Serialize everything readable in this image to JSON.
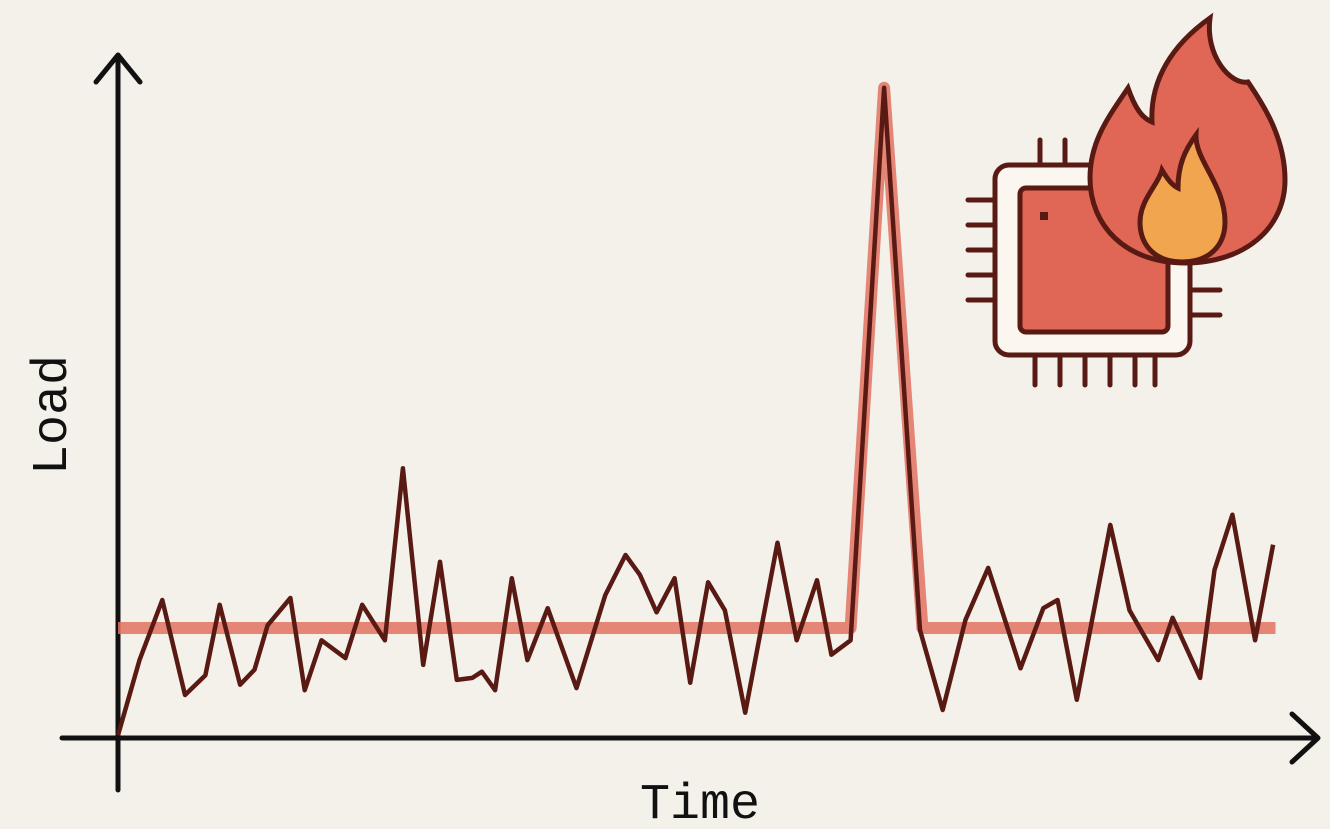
{
  "chart_data": {
    "type": "line",
    "x_label": "Time",
    "y_label": "Load",
    "xlim": [
      0,
      100
    ],
    "ylim": [
      0,
      100
    ],
    "series": [
      {
        "color": "#e07262",
        "x": [
          0,
          61.2,
          64.0,
          67.2,
          96.7
        ],
        "values": [
          16.1,
          16.1,
          95.2,
          16.1,
          16.1
        ]
      },
      {
        "color": "#5a1a14",
        "x": [
          0,
          1.8,
          3.7,
          5.6,
          7.3,
          8.5,
          10.2,
          11.4,
          12.5,
          14.4,
          15.6,
          17.0,
          19.0,
          20.4,
          22.3,
          23.8,
          25.5,
          26.9,
          28.3,
          29.6,
          30.4,
          31.5,
          32.9,
          34.2,
          35.9,
          38.3,
          40.7,
          42.4,
          43.6,
          45.0,
          46.5,
          47.8,
          49.3,
          50.7,
          52.4,
          55.1,
          56.7,
          58.4,
          59.6,
          61.2,
          64.0,
          67.0,
          68.9,
          70.8,
          72.7,
          75.4,
          77.3,
          78.5,
          80.1,
          82.9,
          84.5,
          86.9,
          88.1,
          90.4,
          91.6,
          93.1,
          95.0,
          96.5
        ],
        "values": [
          0.4,
          11.4,
          20.2,
          6.3,
          9.2,
          19.5,
          7.8,
          10.0,
          16.5,
          20.5,
          7.0,
          14.3,
          11.7,
          19.5,
          14.3,
          39.5,
          10.7,
          25.8,
          8.5,
          8.8,
          9.7,
          7.0,
          23.4,
          11.4,
          19.0,
          7.3,
          20.9,
          26.8,
          23.9,
          18.4,
          23.4,
          8.1,
          22.8,
          18.7,
          3.7,
          28.6,
          14.3,
          23.1,
          12.2,
          14.3,
          95.2,
          15.8,
          4.1,
          17.3,
          24.9,
          10.2,
          19.0,
          20.2,
          5.6,
          31.2,
          18.7,
          11.4,
          17.6,
          8.8,
          24.6,
          32.7,
          14.3,
          28.3
        ]
      }
    ]
  }
}
